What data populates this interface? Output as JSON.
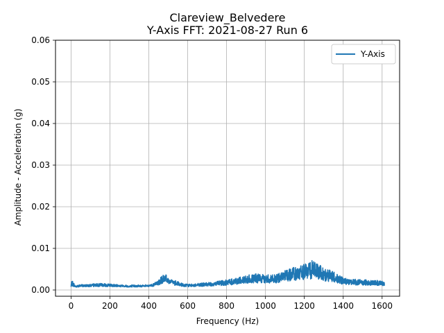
{
  "chart_data": {
    "type": "line",
    "title": "Clareview_Belvedere",
    "subtitle": "Y-Axis FFT: 2021-08-27 Run 6",
    "xlabel": "Frequency (Hz)",
    "ylabel": "Amplitude - Acceleration (g)",
    "xlim": [
      -80,
      1690
    ],
    "ylim": [
      -0.0015,
      0.06
    ],
    "xticks": [
      0,
      200,
      400,
      600,
      800,
      1000,
      1200,
      1400,
      1600
    ],
    "yticks": [
      0.0,
      0.01,
      0.02,
      0.03,
      0.04,
      0.05,
      0.06
    ],
    "ytick_labels": [
      "0.00",
      "0.01",
      "0.02",
      "0.03",
      "0.04",
      "0.05",
      "0.06"
    ],
    "grid": true,
    "legend": {
      "position": "top-right",
      "entries": [
        "Y-Axis"
      ]
    },
    "series": [
      {
        "name": "Y-Axis",
        "color": "#1f77b4",
        "x_range": [
          0,
          1612
        ],
        "envelope_x": [
          0,
          5,
          20,
          40,
          80,
          150,
          200,
          300,
          400,
          440,
          470,
          485,
          500,
          530,
          560,
          600,
          650,
          700,
          750,
          800,
          850,
          900,
          950,
          1000,
          1050,
          1100,
          1150,
          1200,
          1230,
          1250,
          1270,
          1300,
          1350,
          1400,
          1450,
          1500,
          1550,
          1600,
          1612
        ],
        "envelope_max": [
          0.0015,
          0.0024,
          0.0012,
          0.0013,
          0.0014,
          0.0016,
          0.0015,
          0.0012,
          0.0013,
          0.002,
          0.0035,
          0.0042,
          0.0032,
          0.0024,
          0.0018,
          0.0014,
          0.0016,
          0.0018,
          0.0021,
          0.0025,
          0.003,
          0.0036,
          0.0039,
          0.0037,
          0.0038,
          0.0048,
          0.0055,
          0.0062,
          0.0066,
          0.0079,
          0.0066,
          0.0055,
          0.0044,
          0.003,
          0.0027,
          0.0025,
          0.0024,
          0.0023,
          0.002
        ],
        "envelope_min": [
          0.0,
          0.0002,
          0.0003,
          0.0004,
          0.0004,
          0.0004,
          0.0004,
          0.0004,
          0.0004,
          0.0004,
          0.0005,
          0.0005,
          0.0005,
          0.0004,
          0.0004,
          0.0004,
          0.0004,
          0.0004,
          0.0004,
          0.0004,
          0.0004,
          0.0004,
          0.0004,
          0.0004,
          0.0004,
          0.0004,
          0.0004,
          0.0004,
          0.0004,
          0.0004,
          0.0004,
          0.0004,
          0.0004,
          0.0004,
          0.0004,
          0.0004,
          0.0004,
          0.0004,
          0.0004
        ]
      }
    ]
  }
}
